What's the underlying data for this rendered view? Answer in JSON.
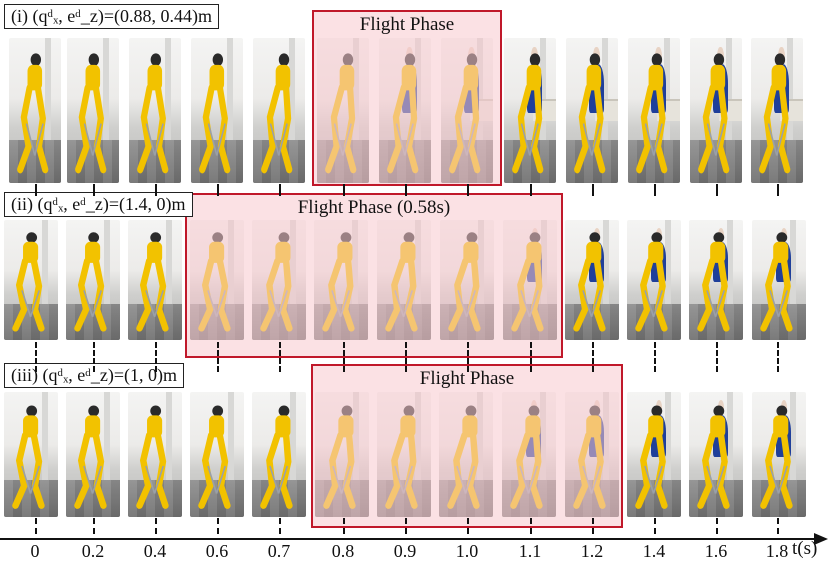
{
  "rows": [
    {
      "label": "(i) (qᵈₓ, eᵈ_z)=(0.88, 0.44)m",
      "phase_label": "Flight Phase"
    },
    {
      "label": "(ii) (qᵈₓ, eᵈ_z)=(1.4,  0)m",
      "phase_label": "Flight Phase (0.58s)"
    },
    {
      "label": "(iii) (qᵈₓ, eᵈ_z)=(1, 0)m",
      "phase_label": "Flight Phase"
    }
  ],
  "axis": {
    "title": "t(s)",
    "ticks": [
      "0",
      "0.2",
      "0.4",
      "0.6",
      "0.7",
      "0.8",
      "0.9",
      "1.0",
      "1.1",
      "1.2",
      "1.4",
      "1.6",
      "1.8"
    ]
  },
  "colors": {
    "robot": "#f2c200",
    "robot_dark": "#2a2a2a",
    "highlight_border": "#c0182a",
    "highlight_fill": "#f8c8ce"
  }
}
